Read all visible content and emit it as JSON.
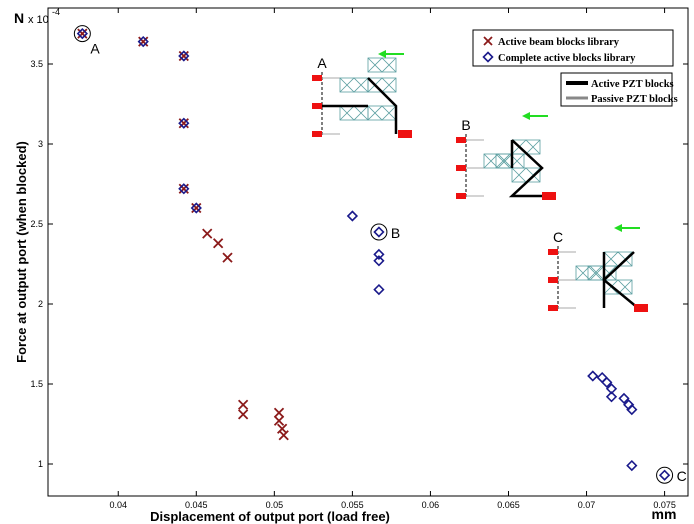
{
  "chart_data": {
    "type": "scatter",
    "xlabel": "Displacement of output port (load free)",
    "ylabel": "Force at output port (when blocked)",
    "x_unit": "mm",
    "y_unit": "N",
    "y_exponent_base": "x 10",
    "y_exponent_power": "-4",
    "xlim": [
      0.0355,
      0.0765
    ],
    "ylim": [
      0.8,
      3.85
    ],
    "x_ticks": [
      "0.04",
      "0.045",
      "0.05",
      "0.055",
      "0.06",
      "0.065",
      "0.07",
      "0.075"
    ],
    "y_ticks": [
      "1",
      "1.5",
      "2",
      "2.5",
      "3",
      "3.5"
    ],
    "grid": false,
    "legend_position": "top-right",
    "series": [
      {
        "name": "Active beam blocks library",
        "marker": "x",
        "color": "#8b1a1a",
        "points": [
          [
            0.0377,
            3.69
          ],
          [
            0.0416,
            3.64
          ],
          [
            0.0442,
            3.55
          ],
          [
            0.0442,
            3.13
          ],
          [
            0.0442,
            2.72
          ],
          [
            0.045,
            2.6
          ],
          [
            0.0457,
            2.44
          ],
          [
            0.0464,
            2.38
          ],
          [
            0.047,
            2.29
          ],
          [
            0.048,
            1.37
          ],
          [
            0.048,
            1.31
          ],
          [
            0.0503,
            1.32
          ],
          [
            0.0503,
            1.27
          ],
          [
            0.0505,
            1.22
          ],
          [
            0.0506,
            1.18
          ]
        ]
      },
      {
        "name": "Complete active blocks library",
        "marker": "diamond",
        "color": "#1a1a8b",
        "points": [
          [
            0.0377,
            3.69
          ],
          [
            0.0416,
            3.64
          ],
          [
            0.0442,
            3.55
          ],
          [
            0.0442,
            3.13
          ],
          [
            0.0442,
            2.72
          ],
          [
            0.045,
            2.6
          ],
          [
            0.055,
            2.55
          ],
          [
            0.0567,
            2.45
          ],
          [
            0.0567,
            2.31
          ],
          [
            0.0567,
            2.27
          ],
          [
            0.0567,
            2.09
          ],
          [
            0.0704,
            1.55
          ],
          [
            0.071,
            1.54
          ],
          [
            0.0713,
            1.51
          ],
          [
            0.0716,
            1.47
          ],
          [
            0.0716,
            1.42
          ],
          [
            0.0724,
            1.41
          ],
          [
            0.0727,
            1.37
          ],
          [
            0.0729,
            1.34
          ],
          [
            0.0729,
            0.99
          ],
          [
            0.075,
            0.93
          ]
        ]
      }
    ],
    "annotations": [
      {
        "label": "A",
        "x": 0.0377,
        "y": 3.69
      },
      {
        "label": "B",
        "x": 0.0567,
        "y": 2.45
      },
      {
        "label": "C",
        "x": 0.075,
        "y": 0.93
      }
    ],
    "inset_legend": {
      "active_label": "Active PZT blocks",
      "passive_label": "Passive PZT blocks"
    },
    "inset_labels": [
      "A",
      "B",
      "C"
    ]
  },
  "colors": {
    "beam_marker": "#8b1a1a",
    "complete_marker": "#1a1a8b",
    "arrow": "#22dd22",
    "support": "#ee1111",
    "lattice": "#5a9ea0"
  }
}
